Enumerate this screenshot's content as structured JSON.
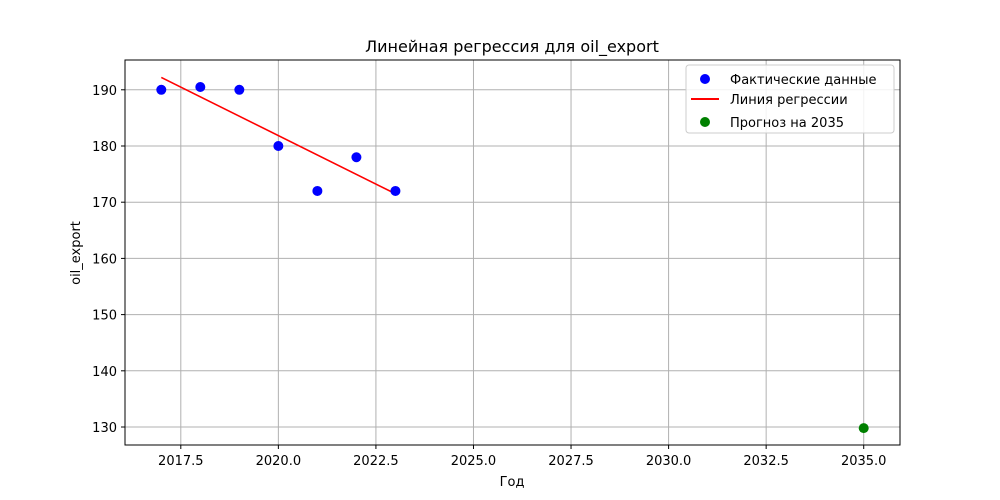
{
  "chart_data": {
    "type": "scatter",
    "title": "Линейная регрессия для oil_export",
    "xlabel": "Год",
    "ylabel": "oil_export",
    "xlim": [
      2016.07,
      2035.93
    ],
    "ylim": [
      126.8,
      195.3
    ],
    "xticks": [
      2017.5,
      2020.0,
      2022.5,
      2025.0,
      2027.5,
      2030.0,
      2032.5,
      2035.0
    ],
    "xtick_labels": [
      "2017.5",
      "2020.0",
      "2022.5",
      "2025.0",
      "2027.5",
      "2030.0",
      "2032.5",
      "2035.0"
    ],
    "yticks": [
      130,
      140,
      150,
      160,
      170,
      180,
      190
    ],
    "ytick_labels": [
      "130",
      "140",
      "150",
      "160",
      "170",
      "180",
      "190"
    ],
    "grid": true,
    "legend_position": "top-right",
    "series": [
      {
        "name": "Фактические данные",
        "kind": "scatter",
        "color": "#0000ff",
        "x": [
          2017,
          2018,
          2019,
          2020,
          2021,
          2022,
          2023
        ],
        "y": [
          190,
          190.5,
          190,
          180,
          172,
          178,
          172
        ]
      },
      {
        "name": "Линия регрессии",
        "kind": "line",
        "color": "#ff0000",
        "x": [
          2017,
          2023
        ],
        "y": [
          192.2,
          171.5
        ]
      },
      {
        "name": "Прогноз на 2035",
        "kind": "scatter",
        "color": "#008000",
        "x": [
          2035
        ],
        "y": [
          129.8
        ]
      }
    ]
  }
}
